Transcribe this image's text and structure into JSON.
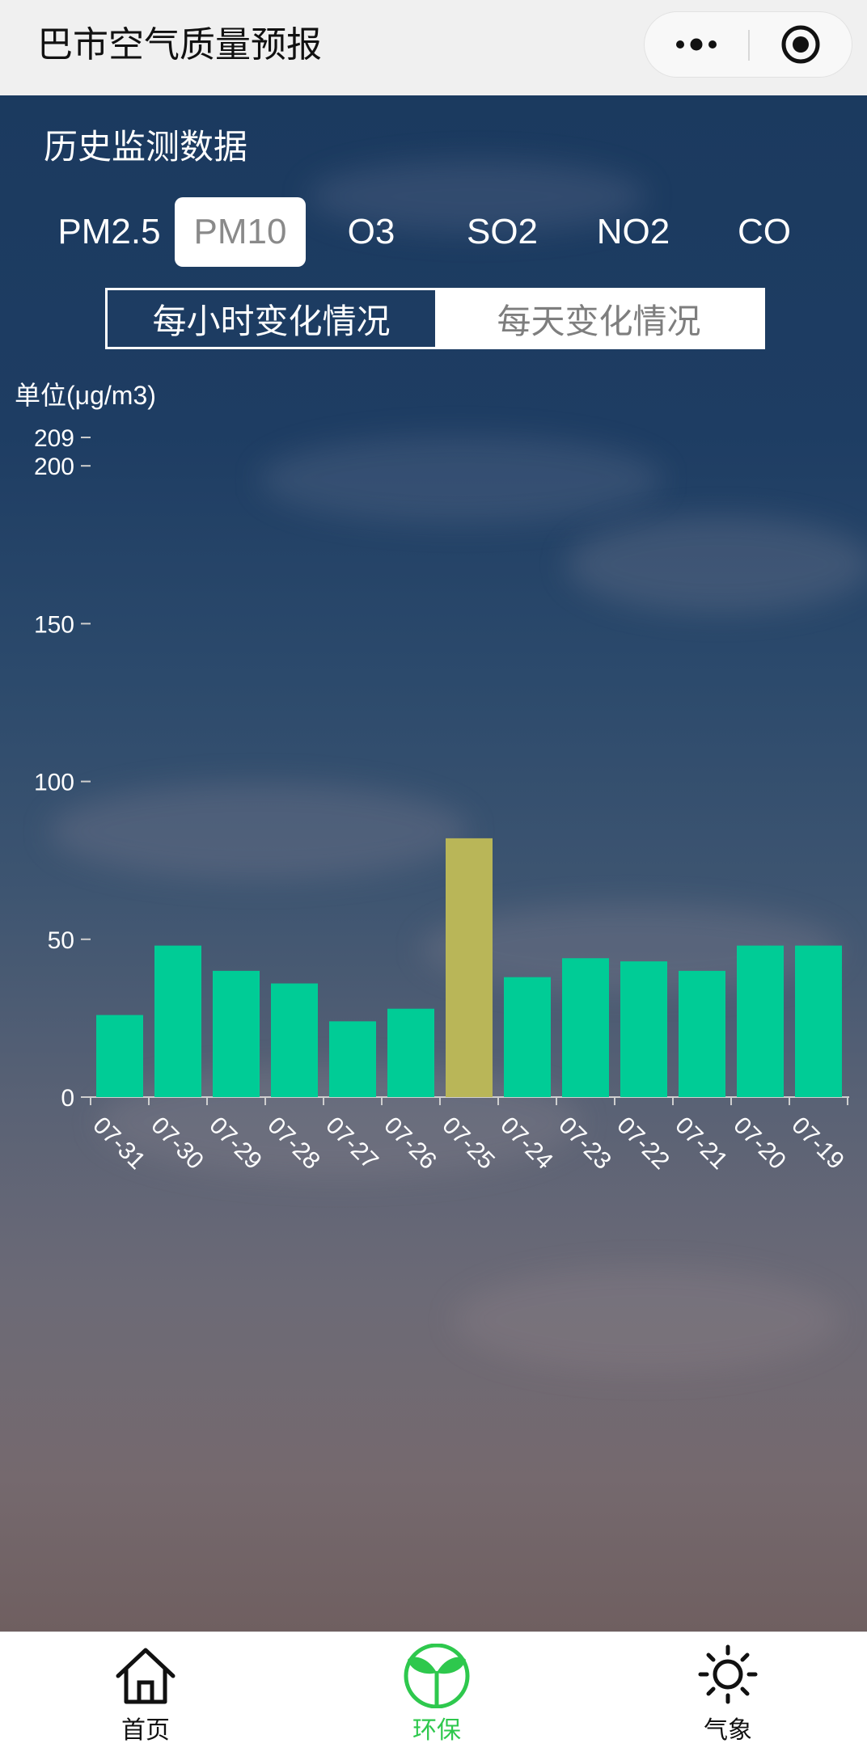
{
  "app": {
    "title": "巴市空气质量预报"
  },
  "capsule": {
    "more_icon": "more-dots-icon",
    "close_icon": "target-icon"
  },
  "section": {
    "title": "历史监测数据"
  },
  "pollutant_tabs": [
    {
      "label": "PM2.5",
      "active": false
    },
    {
      "label": "PM10",
      "active": true
    },
    {
      "label": "O3",
      "active": false
    },
    {
      "label": "SO2",
      "active": false
    },
    {
      "label": "NO2",
      "active": false
    },
    {
      "label": "CO",
      "active": false
    }
  ],
  "period_switch": {
    "hourly": "每小时变化情况",
    "daily": "每天变化情况",
    "selected": "hourly"
  },
  "chart_data": {
    "type": "bar",
    "unit_label": "单位(μg/m3)",
    "categories": [
      "07-31",
      "07-30",
      "07-29",
      "07-28",
      "07-27",
      "07-26",
      "07-25",
      "07-24",
      "07-23",
      "07-22",
      "07-21",
      "07-20",
      "07-19"
    ],
    "values": [
      26,
      48,
      40,
      36,
      24,
      28,
      82,
      38,
      44,
      43,
      40,
      48,
      48
    ],
    "yticks": [
      "0",
      "50",
      "100",
      "150",
      "200",
      "209"
    ],
    "ylim": [
      0,
      209
    ],
    "colors": {
      "normal": "#00cc96",
      "highlight": "#b9b658"
    },
    "highlight_index": 6
  },
  "tabbar": {
    "items": [
      {
        "label": "首页",
        "icon": "home-icon",
        "active": false
      },
      {
        "label": "环保",
        "icon": "sprout-icon",
        "active": true
      },
      {
        "label": "气象",
        "icon": "sun-icon",
        "active": false
      }
    ],
    "active_color": "#2ec84d"
  }
}
